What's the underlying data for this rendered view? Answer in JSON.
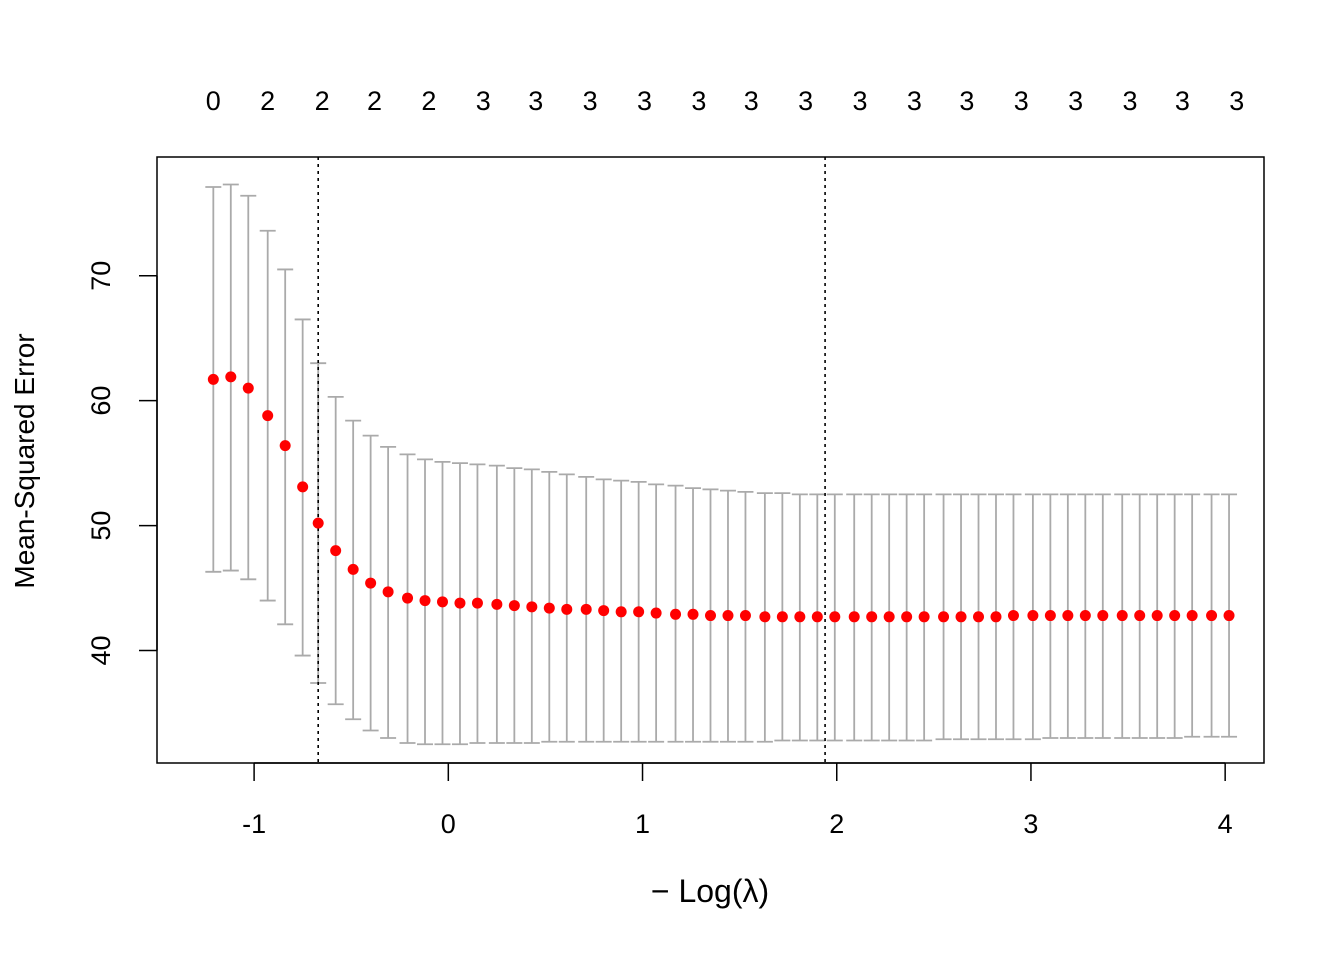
{
  "chart_data": {
    "type": "scatter",
    "title": "",
    "xlabel": "− Log(λ)",
    "ylabel": "Mean-Squared Error",
    "xlim": [
      -1.5,
      4.2
    ],
    "ylim": [
      31,
      79.5
    ],
    "x_ticks": [
      -1,
      0,
      1,
      2,
      3,
      4
    ],
    "y_ticks": [
      40,
      50,
      60,
      70
    ],
    "top_axis_labels": [
      "0",
      "2",
      "2",
      "2",
      "2",
      "3",
      "3",
      "3",
      "3",
      "3",
      "3",
      "3",
      "3",
      "3",
      "3",
      "3",
      "3",
      "3",
      "3",
      "3"
    ],
    "top_axis_positions": [
      -1.21,
      -0.93,
      -0.65,
      -0.38,
      -0.1,
      0.18,
      0.45,
      0.73,
      1.01,
      1.29,
      1.56,
      1.84,
      2.12,
      2.4,
      2.67,
      2.95,
      3.23,
      3.51,
      3.78,
      4.06
    ],
    "vlines": [
      -0.67,
      1.94
    ],
    "point_color": "#ff0000",
    "errorbar_color": "#aaaaaa",
    "series": [
      {
        "x": [
          -1.21,
          -1.12,
          -1.03,
          -0.93,
          -0.84,
          -0.75,
          -0.67,
          -0.58,
          -0.49,
          -0.4,
          -0.31,
          -0.21,
          -0.12,
          -0.03,
          0.06,
          0.15,
          0.25,
          0.34,
          0.43,
          0.52,
          0.61,
          0.71,
          0.8,
          0.89,
          0.98,
          1.07,
          1.17,
          1.26,
          1.35,
          1.44,
          1.53,
          1.63,
          1.72,
          1.81,
          1.9,
          1.99,
          2.09,
          2.18,
          2.27,
          2.36,
          2.45,
          2.55,
          2.64,
          2.73,
          2.82,
          2.91,
          3.01,
          3.1,
          3.19,
          3.28,
          3.37,
          3.47,
          3.56,
          3.65,
          3.74,
          3.83,
          3.93,
          4.02
        ],
        "y": [
          61.7,
          61.9,
          61.0,
          58.8,
          56.4,
          53.1,
          50.2,
          48.0,
          46.5,
          45.4,
          44.7,
          44.2,
          44.0,
          43.9,
          43.8,
          43.8,
          43.7,
          43.6,
          43.5,
          43.4,
          43.3,
          43.3,
          43.2,
          43.1,
          43.1,
          43.0,
          42.9,
          42.9,
          42.8,
          42.8,
          42.8,
          42.7,
          42.7,
          42.7,
          42.7,
          42.7,
          42.7,
          42.7,
          42.7,
          42.7,
          42.7,
          42.7,
          42.7,
          42.7,
          42.7,
          42.8,
          42.8,
          42.8,
          42.8,
          42.8,
          42.8,
          42.8,
          42.8,
          42.8,
          42.8,
          42.8,
          42.8,
          42.8
        ],
        "upper": [
          77.1,
          77.3,
          76.4,
          73.6,
          70.5,
          66.5,
          63.0,
          60.3,
          58.4,
          57.2,
          56.3,
          55.7,
          55.3,
          55.1,
          55.0,
          54.9,
          54.8,
          54.6,
          54.5,
          54.3,
          54.1,
          53.9,
          53.7,
          53.6,
          53.5,
          53.3,
          53.2,
          53.0,
          52.9,
          52.8,
          52.7,
          52.6,
          52.6,
          52.5,
          52.5,
          52.5,
          52.5,
          52.5,
          52.5,
          52.5,
          52.5,
          52.5,
          52.5,
          52.5,
          52.5,
          52.5,
          52.5,
          52.5,
          52.5,
          52.5,
          52.5,
          52.5,
          52.5,
          52.5,
          52.5,
          52.5,
          52.5,
          52.5
        ],
        "lower": [
          46.3,
          46.4,
          45.7,
          44.0,
          42.1,
          39.6,
          37.4,
          35.7,
          34.5,
          33.6,
          33.0,
          32.6,
          32.5,
          32.5,
          32.5,
          32.6,
          32.6,
          32.6,
          32.6,
          32.7,
          32.7,
          32.7,
          32.7,
          32.7,
          32.7,
          32.7,
          32.7,
          32.7,
          32.7,
          32.7,
          32.7,
          32.7,
          32.8,
          32.8,
          32.8,
          32.8,
          32.8,
          32.8,
          32.8,
          32.8,
          32.8,
          32.9,
          32.9,
          32.9,
          32.9,
          32.9,
          32.9,
          33.0,
          33.0,
          33.0,
          33.0,
          33.0,
          33.0,
          33.0,
          33.0,
          33.1,
          33.1,
          33.1
        ]
      }
    ]
  }
}
